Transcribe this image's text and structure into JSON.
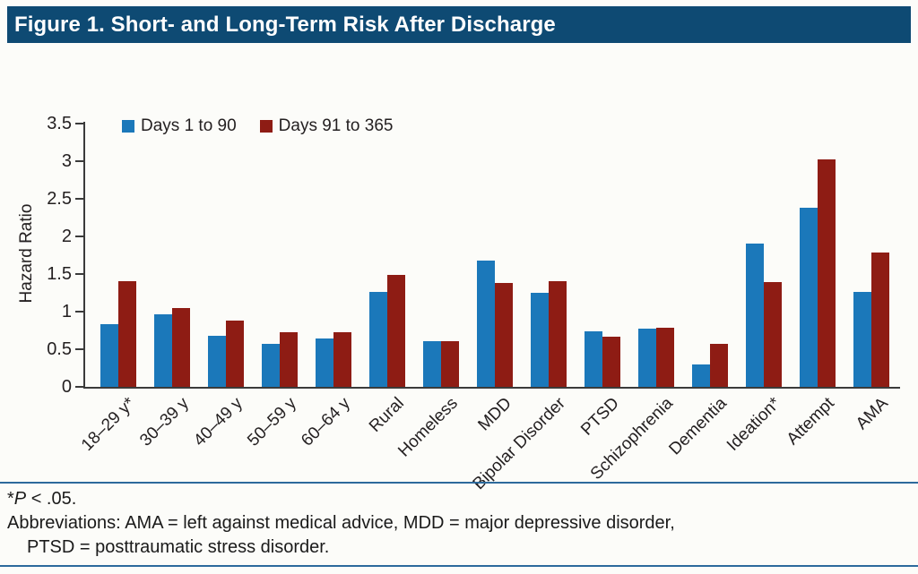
{
  "header": {
    "title": "Figure 1. Short- and Long-Term Risk After Discharge",
    "banner_color": "#0e4a73"
  },
  "chart_data": {
    "type": "bar",
    "title": "Short- and Long-Term Risk After Discharge",
    "xlabel": "",
    "ylabel": "Hazard Ratio",
    "ylim": [
      0,
      3.5
    ],
    "yticks": [
      0,
      0.5,
      1,
      1.5,
      2,
      2.5,
      3,
      3.5
    ],
    "ytick_labels": [
      "0",
      "0.5",
      "1",
      "1.5",
      "2",
      "2.5",
      "3",
      "3.5"
    ],
    "grid": false,
    "legend_position": "top-left-inside",
    "categories": [
      "18–29 y*",
      "30–39 y",
      "40–49 y",
      "50–59 y",
      "60–64 y",
      "Rural",
      "Homeless",
      "MDD",
      "Bipolar Disorder",
      "PTSD",
      "Schizophrenia",
      "Dementia",
      "Ideation*",
      "Attempt",
      "AMA"
    ],
    "series": [
      {
        "name": "Days 1 to 90",
        "color": "#1b78ba",
        "values": [
          0.83,
          0.96,
          0.68,
          0.57,
          0.64,
          1.26,
          0.61,
          1.68,
          1.25,
          0.74,
          0.77,
          0.3,
          1.91,
          2.38,
          1.26
        ]
      },
      {
        "name": "Days 91 to 365",
        "color": "#8e1c14",
        "values": [
          1.41,
          1.05,
          0.88,
          0.73,
          0.73,
          1.49,
          0.61,
          1.38,
          1.41,
          0.67,
          0.78,
          0.57,
          1.39,
          3.02,
          1.79
        ]
      }
    ]
  },
  "footer": {
    "note_star": "*",
    "note_italic": "P",
    "note_rest": " < .05.",
    "abbrev_line1": "Abbreviations: AMA = left against medical advice, MDD = major depressive disorder,",
    "abbrev_line2": "PTSD = posttraumatic stress disorder.",
    "rule_color": "#2d6a9c"
  }
}
